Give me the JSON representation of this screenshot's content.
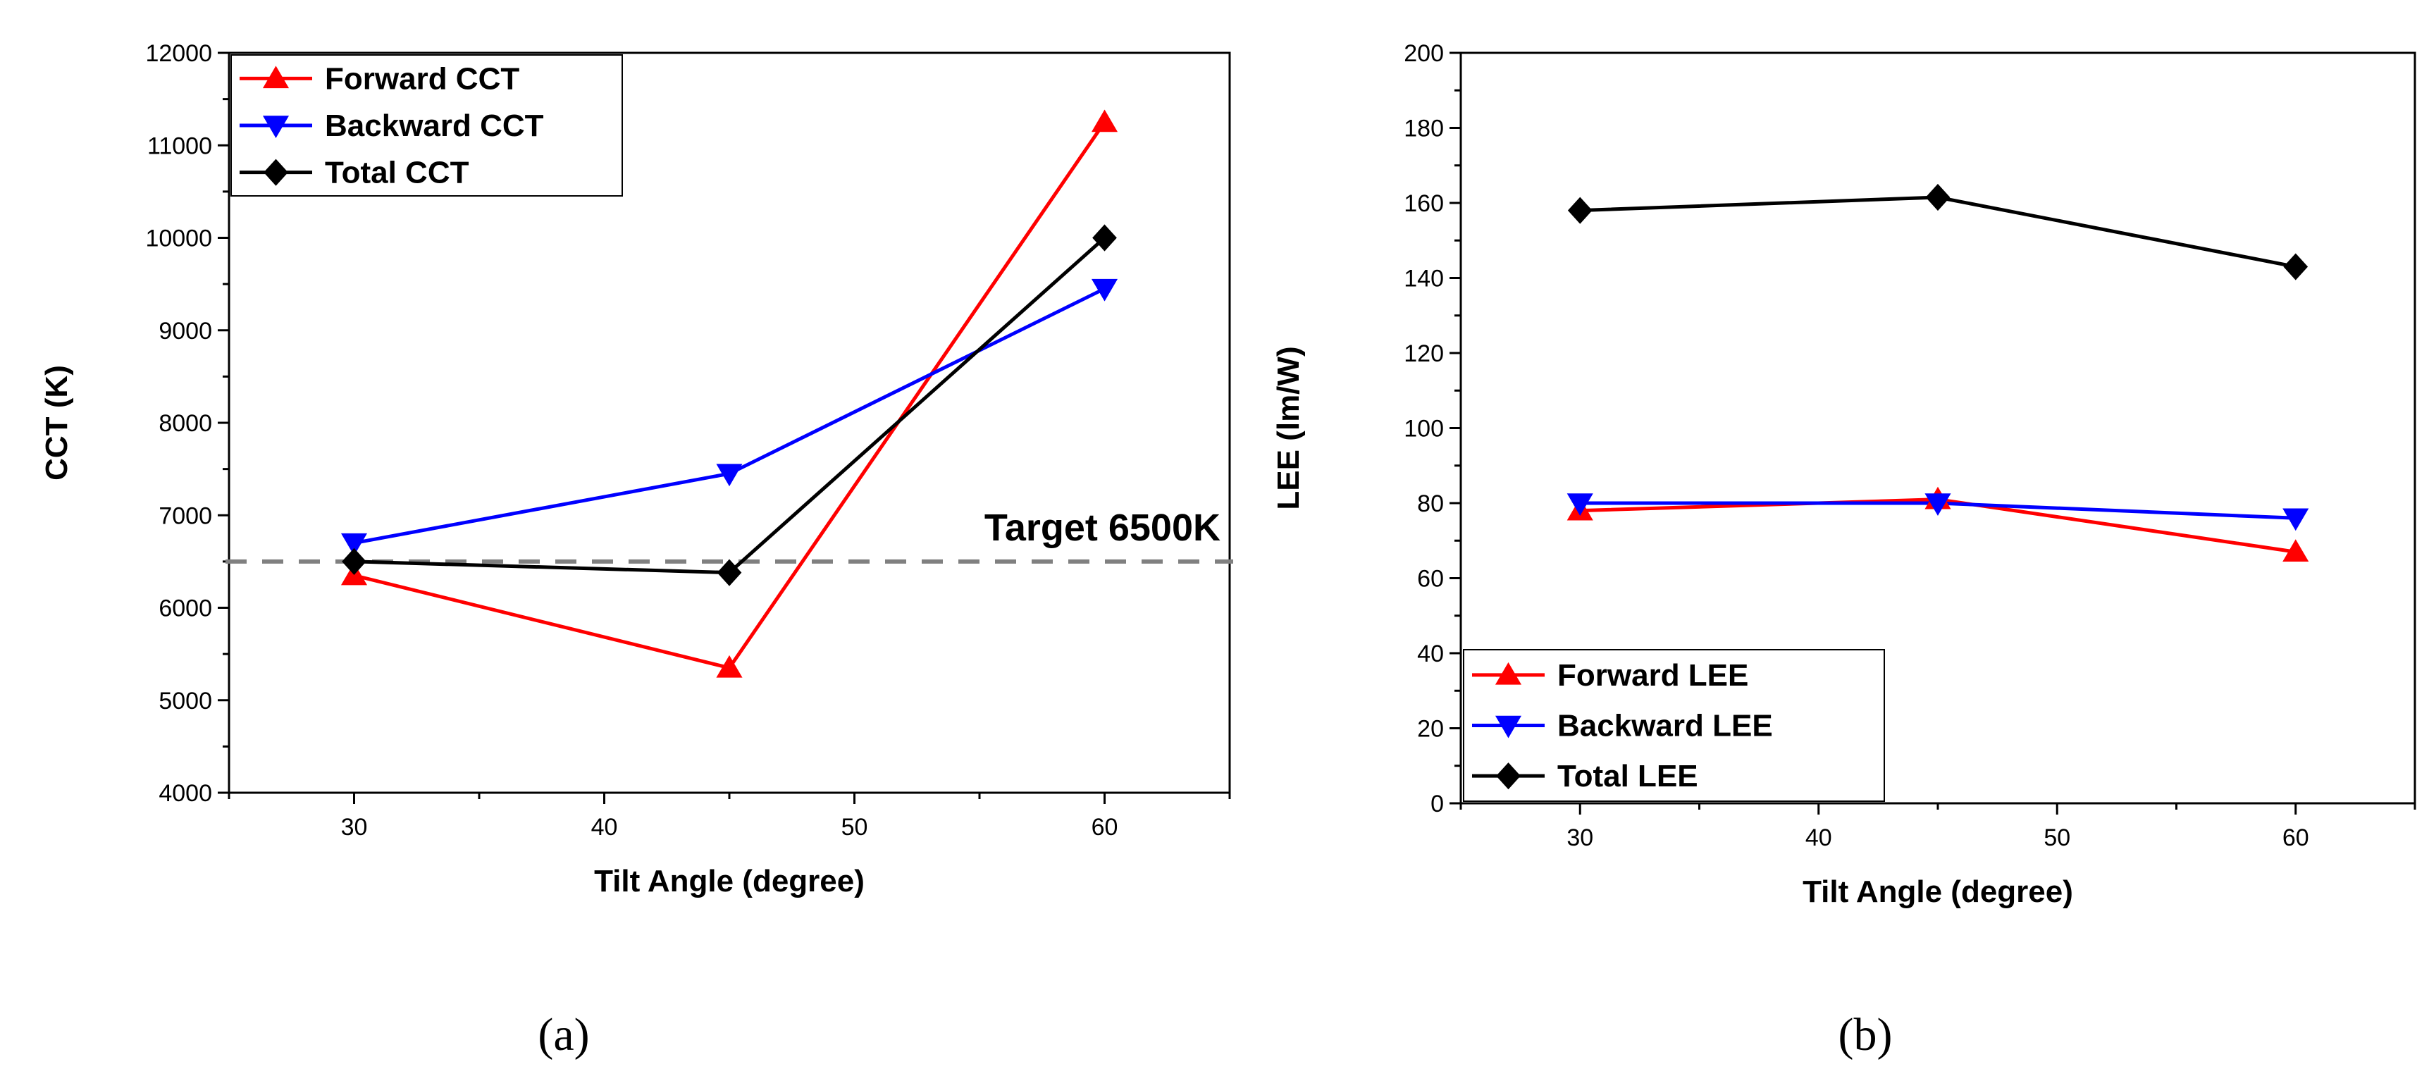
{
  "figure": {
    "caption_a": "(a)",
    "caption_b": "(b)"
  },
  "colors": {
    "forward": "#ff0000",
    "backward": "#0000ff",
    "total": "#000000",
    "target_line": "#808080"
  },
  "chart_data": [
    {
      "id": "a",
      "type": "line",
      "xlabel": "Tilt Angle (degree)",
      "ylabel": "CCT (K)",
      "xlim": [
        25,
        65
      ],
      "ylim": [
        4000,
        12000
      ],
      "xticks": [
        30,
        40,
        50,
        60
      ],
      "yticks": [
        4000,
        5000,
        6000,
        7000,
        8000,
        9000,
        10000,
        11000,
        12000
      ],
      "x": [
        30,
        45,
        60
      ],
      "series": [
        {
          "name": "Forward CCT",
          "marker": "triangle-up",
          "color": "#ff0000",
          "values": [
            6350,
            5350,
            11250
          ]
        },
        {
          "name": "Backward CCT",
          "marker": "triangle-down",
          "color": "#0000ff",
          "values": [
            6700,
            7450,
            9450
          ]
        },
        {
          "name": "Total CCT",
          "marker": "diamond",
          "color": "#000000",
          "values": [
            6500,
            6380,
            10000
          ]
        }
      ],
      "reference_line": {
        "value": 6500,
        "label": "Target 6500K"
      },
      "legend_position": "top-left"
    },
    {
      "id": "b",
      "type": "line",
      "xlabel": "Tilt Angle (degree)",
      "ylabel": "LEE (lm/W)",
      "xlim": [
        25,
        65
      ],
      "ylim": [
        0,
        200
      ],
      "xticks": [
        30,
        40,
        50,
        60
      ],
      "yticks": [
        0,
        20,
        40,
        60,
        80,
        100,
        120,
        140,
        160,
        180,
        200
      ],
      "x": [
        30,
        45,
        60
      ],
      "series": [
        {
          "name": "Forward LEE",
          "marker": "triangle-up",
          "color": "#ff0000",
          "values": [
            78,
            81,
            67
          ]
        },
        {
          "name": "Backward LEE",
          "marker": "triangle-down",
          "color": "#0000ff",
          "values": [
            80,
            80,
            76
          ]
        },
        {
          "name": "Total LEE",
          "marker": "diamond",
          "color": "#000000",
          "values": [
            158,
            161.5,
            143
          ]
        }
      ],
      "legend_position": "bottom-left"
    }
  ]
}
